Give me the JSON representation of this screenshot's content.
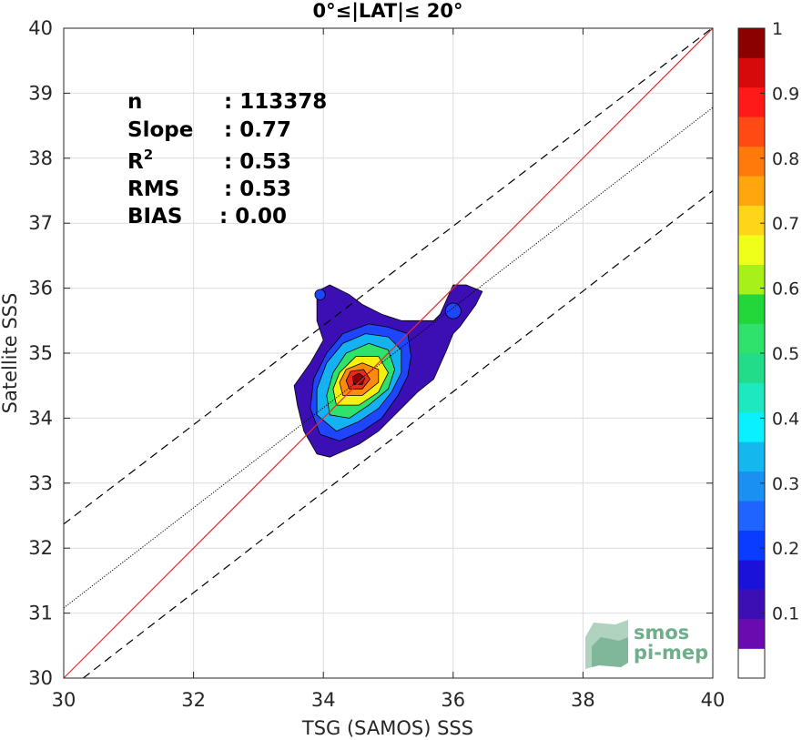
{
  "chart_data": {
    "type": "heatmap",
    "subtype": "filled-contour density scatter",
    "title": "0°≤|LAT|≤ 20°",
    "xlabel": "TSG (SAMOS) SSS",
    "ylabel": "Satellite SSS",
    "xlim": [
      30,
      40
    ],
    "ylim": [
      30,
      40
    ],
    "xticks": [
      "30",
      "32",
      "34",
      "36",
      "38",
      "40"
    ],
    "yticks": [
      "30",
      "31",
      "32",
      "33",
      "34",
      "35",
      "36",
      "37",
      "38",
      "39",
      "40"
    ],
    "grid": true,
    "stats": [
      {
        "label": "n",
        "value": ": 113378"
      },
      {
        "label": "Slope",
        "value": ": 0.77"
      },
      {
        "label": "R",
        "sup": "2",
        "value": ": 0.53"
      },
      {
        "label": "RMS",
        "value": ": 0.53"
      },
      {
        "label": "BIAS",
        "value": ": 0.00"
      }
    ],
    "lines": [
      {
        "name": "one-to-one",
        "style": "solid",
        "color": "#e8292c",
        "points": [
          [
            30,
            30
          ],
          [
            40,
            40
          ]
        ]
      },
      {
        "name": "regression",
        "style": "dotted",
        "color": "#000000",
        "points": [
          [
            30,
            31.08
          ],
          [
            40,
            38.78
          ]
        ]
      },
      {
        "name": "upper-bound",
        "style": "dashed",
        "color": "#000000",
        "points": [
          [
            30,
            32.37
          ],
          [
            40,
            40.01
          ]
        ]
      },
      {
        "name": "lower-bound",
        "style": "dashed",
        "color": "#000000",
        "points": [
          [
            30.3,
            30
          ],
          [
            40,
            37.5
          ]
        ]
      }
    ],
    "density_peak": {
      "x": 34.55,
      "y": 34.6,
      "value": 1.0
    },
    "contours": [
      {
        "level": 0.05,
        "color": "#3c0fb4",
        "points": [
          [
            33.6,
            34.2
          ],
          [
            33.7,
            33.8
          ],
          [
            33.9,
            33.45
          ],
          [
            34.1,
            33.4
          ],
          [
            34.55,
            33.6
          ],
          [
            34.85,
            33.8
          ],
          [
            35.0,
            33.95
          ],
          [
            35.2,
            34.15
          ],
          [
            35.45,
            34.4
          ],
          [
            35.7,
            34.6
          ],
          [
            35.9,
            35.05
          ],
          [
            36.0,
            35.3
          ],
          [
            36.1,
            35.4
          ],
          [
            36.35,
            35.75
          ],
          [
            36.45,
            35.95
          ],
          [
            36.2,
            36.05
          ],
          [
            36.0,
            36.05
          ],
          [
            35.8,
            35.6
          ],
          [
            35.7,
            35.5
          ],
          [
            35.5,
            35.5
          ],
          [
            35.2,
            35.5
          ],
          [
            34.9,
            35.6
          ],
          [
            34.6,
            35.75
          ],
          [
            34.4,
            35.9
          ],
          [
            34.1,
            36.05
          ],
          [
            33.9,
            35.95
          ],
          [
            33.9,
            35.5
          ],
          [
            34.0,
            35.2
          ],
          [
            33.8,
            34.85
          ],
          [
            33.55,
            34.5
          ]
        ]
      },
      {
        "level": 0.15,
        "color": "#1f46ff",
        "points": [
          [
            33.8,
            34.15
          ],
          [
            33.95,
            33.75
          ],
          [
            34.25,
            33.65
          ],
          [
            34.6,
            33.8
          ],
          [
            34.9,
            34.0
          ],
          [
            35.15,
            34.35
          ],
          [
            35.3,
            34.65
          ],
          [
            35.35,
            34.95
          ],
          [
            35.3,
            35.3
          ],
          [
            35.0,
            35.4
          ],
          [
            34.7,
            35.45
          ],
          [
            34.3,
            35.3
          ],
          [
            34.05,
            35.0
          ],
          [
            33.85,
            34.6
          ]
        ]
      },
      {
        "level": 0.3,
        "color": "#14b2f2",
        "points": [
          [
            33.9,
            34.05
          ],
          [
            34.2,
            33.8
          ],
          [
            34.55,
            33.95
          ],
          [
            34.85,
            34.15
          ],
          [
            35.05,
            34.4
          ],
          [
            35.2,
            34.7
          ],
          [
            35.2,
            35.05
          ],
          [
            35.0,
            35.25
          ],
          [
            34.65,
            35.3
          ],
          [
            34.3,
            35.15
          ],
          [
            34.05,
            34.85
          ],
          [
            33.9,
            34.45
          ]
        ]
      },
      {
        "level": 0.45,
        "color": "#2ee26c",
        "points": [
          [
            34.1,
            34.05
          ],
          [
            34.4,
            34.0
          ],
          [
            34.7,
            34.2
          ],
          [
            35.0,
            34.45
          ],
          [
            35.1,
            34.75
          ],
          [
            35.0,
            35.05
          ],
          [
            34.7,
            35.15
          ],
          [
            34.35,
            35.0
          ],
          [
            34.15,
            34.7
          ],
          [
            34.05,
            34.35
          ]
        ]
      },
      {
        "level": 0.6,
        "color": "#f7ef0f",
        "points": [
          [
            34.2,
            34.2
          ],
          [
            34.55,
            34.2
          ],
          [
            34.85,
            34.4
          ],
          [
            35.0,
            34.7
          ],
          [
            34.85,
            34.95
          ],
          [
            34.5,
            34.95
          ],
          [
            34.25,
            34.7
          ],
          [
            34.15,
            34.45
          ]
        ]
      },
      {
        "level": 0.75,
        "color": "#ff8a0f",
        "points": [
          [
            34.3,
            34.35
          ],
          [
            34.6,
            34.35
          ],
          [
            34.85,
            34.55
          ],
          [
            34.85,
            34.75
          ],
          [
            34.6,
            34.85
          ],
          [
            34.35,
            34.75
          ],
          [
            34.25,
            34.55
          ]
        ]
      },
      {
        "level": 0.9,
        "color": "#e82b1f",
        "points": [
          [
            34.4,
            34.45
          ],
          [
            34.6,
            34.45
          ],
          [
            34.72,
            34.6
          ],
          [
            34.62,
            34.75
          ],
          [
            34.42,
            34.72
          ],
          [
            34.35,
            34.58
          ]
        ]
      },
      {
        "level": 0.97,
        "color": "#8b0000",
        "points": [
          [
            34.47,
            34.52
          ],
          [
            34.6,
            34.52
          ],
          [
            34.64,
            34.62
          ],
          [
            34.55,
            34.69
          ],
          [
            34.45,
            34.64
          ]
        ]
      }
    ],
    "secondary_blobs": [
      {
        "x": 36.0,
        "y": 35.65,
        "rx": 0.12,
        "ry": 0.12,
        "color": "#1f46ff"
      },
      {
        "x": 33.95,
        "y": 35.9,
        "rx": 0.08,
        "ry": 0.08,
        "color": "#1f46ff"
      }
    ],
    "colorbar": {
      "ticks": [
        "0.1",
        "0.2",
        "0.3",
        "0.4",
        "0.5",
        "0.6",
        "0.7",
        "0.8",
        "0.9",
        "1"
      ],
      "tick_values": [
        0.1,
        0.2,
        0.3,
        0.4,
        0.5,
        0.6,
        0.7,
        0.8,
        0.9,
        1.0
      ],
      "range": [
        0,
        1
      ],
      "bands": [
        "#ffffff",
        "#6a0bb0",
        "#3c0fb4",
        "#1a12d8",
        "#0a3cff",
        "#1f64ff",
        "#1a90f2",
        "#14b8ee",
        "#0af0ff",
        "#1de8c0",
        "#22dc8a",
        "#2ee26c",
        "#23d63a",
        "#a8f01a",
        "#f0ff1a",
        "#ffd51a",
        "#ffa60f",
        "#ff7a0a",
        "#ff4a14",
        "#ff1a1a",
        "#d60a0a",
        "#8b0000"
      ]
    },
    "logo": {
      "line1": "smos",
      "line2": "pi-mep"
    }
  }
}
